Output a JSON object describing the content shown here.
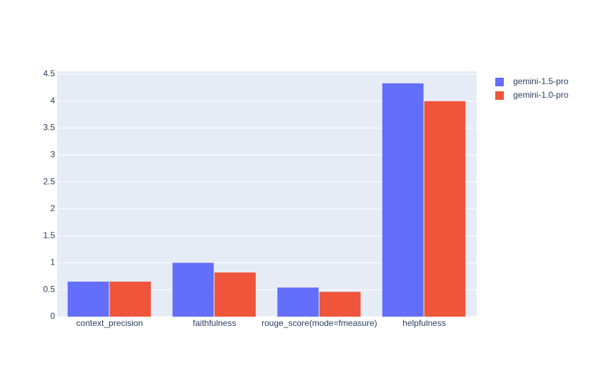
{
  "chart_data": {
    "type": "bar",
    "categories": [
      "context_precision",
      "faithfulness",
      "rouge_score(mode=fmeasure)",
      "helpfulness"
    ],
    "series": [
      {
        "name": "gemini-1.5-pro",
        "color": "#636efa",
        "values": [
          0.65,
          1.0,
          0.54,
          4.33
        ]
      },
      {
        "name": "gemini-1.0-pro",
        "color": "#ef553b",
        "values": [
          0.65,
          0.82,
          0.46,
          4.0
        ]
      }
    ],
    "ylim": [
      0,
      4.5
    ],
    "yticks": [
      0,
      0.5,
      1,
      1.5,
      2,
      2.5,
      3,
      3.5,
      4,
      4.5
    ],
    "grid": true
  }
}
